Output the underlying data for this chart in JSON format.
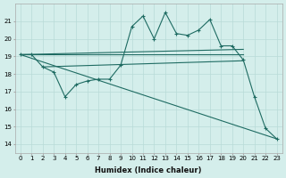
{
  "xlabel": "Humidex (Indice chaleur)",
  "background_color": "#d4eeeb",
  "grid_color": "#b8dbd7",
  "line_color": "#1e6b62",
  "x_values": [
    0,
    1,
    2,
    3,
    4,
    5,
    6,
    7,
    8,
    9,
    10,
    11,
    12,
    13,
    14,
    15,
    16,
    17,
    18,
    19,
    20,
    21,
    22,
    23
  ],
  "line1": [
    19.1,
    19.1,
    18.4,
    18.1,
    16.7,
    17.4,
    17.6,
    17.7,
    17.7,
    18.5,
    20.7,
    21.3,
    20.0,
    21.5,
    20.3,
    20.2,
    20.5,
    21.1,
    19.6,
    19.6,
    18.8,
    16.7,
    14.9,
    14.3
  ],
  "trend1_x": [
    0,
    20
  ],
  "trend1_y": [
    19.1,
    19.1
  ],
  "trend2_x": [
    0,
    20
  ],
  "trend2_y": [
    19.1,
    19.4
  ],
  "trend3_x": [
    2,
    20
  ],
  "trend3_y": [
    18.4,
    18.75
  ],
  "trend4_x": [
    0,
    23
  ],
  "trend4_y": [
    19.1,
    14.3
  ],
  "ylim": [
    13.5,
    22.0
  ],
  "xlim": [
    -0.5,
    23.5
  ],
  "yticks": [
    14,
    15,
    16,
    17,
    18,
    19,
    20,
    21
  ],
  "xticks": [
    0,
    1,
    2,
    3,
    4,
    5,
    6,
    7,
    8,
    9,
    10,
    11,
    12,
    13,
    14,
    15,
    16,
    17,
    18,
    19,
    20,
    21,
    22,
    23
  ]
}
